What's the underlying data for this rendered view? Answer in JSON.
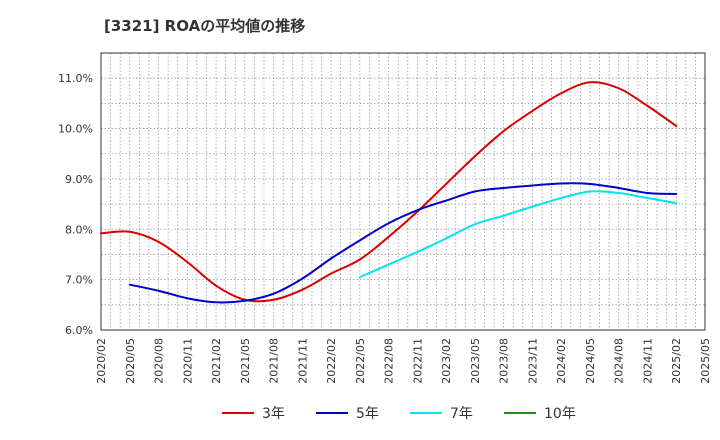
{
  "chart_data": {
    "type": "line",
    "title": "[3321]  ROAの平均値の推移",
    "xlabel": "",
    "ylabel": "",
    "x_ticks": [
      "2020/02",
      "2020/05",
      "2020/08",
      "2020/11",
      "2021/02",
      "2021/05",
      "2021/08",
      "2021/11",
      "2022/02",
      "2022/05",
      "2022/08",
      "2022/11",
      "2023/02",
      "2023/05",
      "2023/08",
      "2023/11",
      "2024/02",
      "2024/05",
      "2024/08",
      "2024/11",
      "2025/02",
      "2025/05"
    ],
    "y_ticks": [
      "6.0%",
      "7.0%",
      "8.0%",
      "9.0%",
      "10.0%",
      "11.0%"
    ],
    "ylim": [
      6.0,
      11.5
    ],
    "grid": true,
    "legend_position": "bottom",
    "series": [
      {
        "name": "3年",
        "color": "#dd0000",
        "x": [
          "2020/02",
          "2020/05",
          "2020/08",
          "2020/11",
          "2021/02",
          "2021/05",
          "2021/08",
          "2021/11",
          "2022/02",
          "2022/05",
          "2022/08",
          "2022/11",
          "2023/02",
          "2023/05",
          "2023/08",
          "2023/11",
          "2024/02",
          "2024/05",
          "2024/08",
          "2024/11",
          "2025/02"
        ],
        "values": [
          7.92,
          7.95,
          7.75,
          7.35,
          6.88,
          6.6,
          6.6,
          6.8,
          7.12,
          7.4,
          7.85,
          8.35,
          8.9,
          9.45,
          9.95,
          10.35,
          10.7,
          10.92,
          10.8,
          10.45,
          10.05
        ]
      },
      {
        "name": "5年",
        "color": "#0000cc",
        "x": [
          "2020/05",
          "2020/08",
          "2020/11",
          "2021/02",
          "2021/05",
          "2021/08",
          "2021/11",
          "2022/02",
          "2022/05",
          "2022/08",
          "2022/11",
          "2023/02",
          "2023/05",
          "2023/08",
          "2023/11",
          "2024/02",
          "2024/05",
          "2024/08",
          "2024/11",
          "2025/02"
        ],
        "values": [
          6.9,
          6.78,
          6.63,
          6.55,
          6.58,
          6.72,
          7.02,
          7.42,
          7.78,
          8.12,
          8.38,
          8.57,
          8.75,
          8.82,
          8.87,
          8.91,
          8.9,
          8.82,
          8.72,
          8.7
        ]
      },
      {
        "name": "7年",
        "color": "#00e5ee",
        "x": [
          "2022/05",
          "2022/08",
          "2022/11",
          "2023/02",
          "2023/05",
          "2023/08",
          "2023/11",
          "2024/02",
          "2024/05",
          "2024/08",
          "2024/11",
          "2025/02"
        ],
        "values": [
          7.05,
          7.3,
          7.55,
          7.82,
          8.1,
          8.27,
          8.45,
          8.62,
          8.75,
          8.72,
          8.62,
          8.52
        ]
      },
      {
        "name": "10年",
        "color": "#228b22",
        "x": [],
        "values": []
      }
    ]
  }
}
